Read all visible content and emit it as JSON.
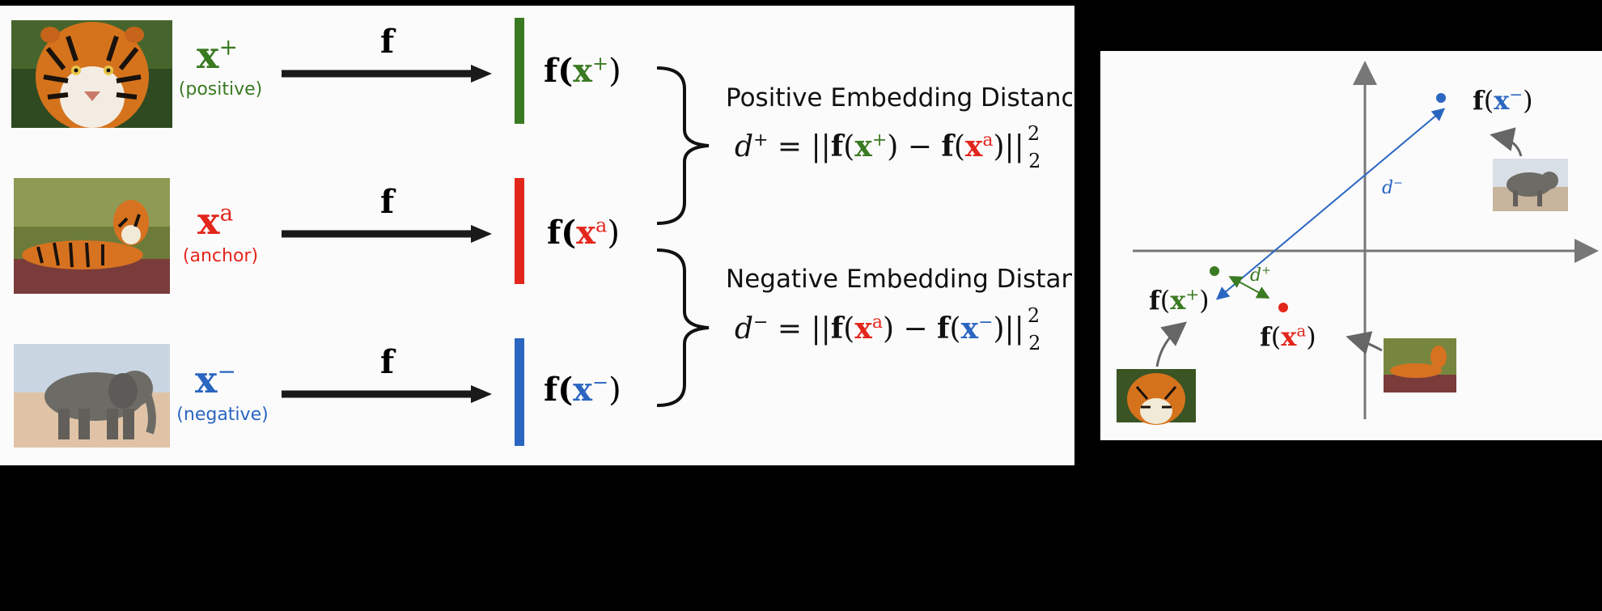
{
  "rows": [
    {
      "symbol": "x",
      "sup": "+",
      "role": "(positive)",
      "color": "#3a7a22",
      "map_label": "f",
      "embed_fn": "f(",
      "embed_sym": "x",
      "embed_sup": "+",
      "embed_close": ")",
      "photo": "tiger-portrait"
    },
    {
      "symbol": "x",
      "sup": "a",
      "role": "(anchor)",
      "color": "#e3261c",
      "map_label": "f",
      "embed_fn": "f(",
      "embed_sym": "x",
      "embed_sup": "a",
      "embed_close": ")",
      "photo": "tiger-lying"
    },
    {
      "symbol": "x",
      "sup": "−",
      "role": "(negative)",
      "color": "#2a66c0",
      "map_label": "f",
      "embed_fn": "f(",
      "embed_sym": "x",
      "embed_sup": "−",
      "embed_close": ")",
      "photo": "elephant"
    }
  ],
  "positive": {
    "title": "Positive Embedding Distanc",
    "d": "d",
    "d_sup": "+",
    "norm_sup": "2",
    "norm_sub": "2"
  },
  "negative": {
    "title": "Negative Embedding Distan",
    "d": "d",
    "d_sup": "−",
    "norm_sup": "2",
    "norm_sub": "2"
  },
  "plot": {
    "points": [
      {
        "name": "f(x⁺)",
        "sup": "+",
        "color": "#3a7a22"
      },
      {
        "name": "f(xᵃ)",
        "sup": "a",
        "color": "#e3261c"
      },
      {
        "name": "f(x⁻)",
        "sup": "−",
        "color": "#2a66c0"
      }
    ],
    "d_plus": {
      "d": "d",
      "sup": "+"
    },
    "d_minus": {
      "d": "d",
      "sup": "−"
    }
  },
  "colors": {
    "positive": "#3a7a22",
    "anchor": "#e3261c",
    "negative": "#2a66c0",
    "axis": "#777777"
  }
}
